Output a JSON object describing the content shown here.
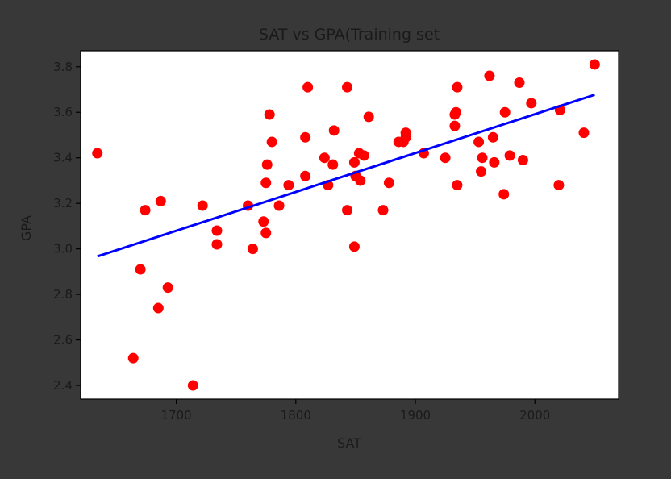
{
  "chart_data": {
    "type": "scatter",
    "title": "SAT vs GPA(Training set",
    "xlabel": "SAT",
    "ylabel": "GPA",
    "xlim": [
      1620,
      2070
    ],
    "ylim": [
      2.34,
      3.87
    ],
    "xticks": [
      1700,
      1800,
      1900,
      2000
    ],
    "xtick_labels": [
      "1700",
      "1800",
      "1900",
      "2000"
    ],
    "yticks": [
      2.4,
      2.6,
      2.8,
      3.0,
      3.2,
      3.4,
      3.6,
      3.8
    ],
    "ytick_labels": [
      "2.4",
      "2.6",
      "2.8",
      "3.0",
      "3.2",
      "3.4",
      "3.6",
      "3.8"
    ],
    "grid": false,
    "background_color": "#383838",
    "plot_background": "#ffffff",
    "scatter_color": "#ff0000",
    "line_color": "#0000ff",
    "points": [
      [
        1634,
        3.42
      ],
      [
        1664,
        2.52
      ],
      [
        1670,
        2.91
      ],
      [
        1674,
        3.17
      ],
      [
        1685,
        2.74
      ],
      [
        1687,
        3.21
      ],
      [
        1693,
        2.83
      ],
      [
        1714,
        2.4
      ],
      [
        1722,
        3.19
      ],
      [
        1734,
        3.08
      ],
      [
        1734,
        3.02
      ],
      [
        1760,
        3.19
      ],
      [
        1764,
        3.0
      ],
      [
        1773,
        3.12
      ],
      [
        1775,
        3.07
      ],
      [
        1775,
        3.29
      ],
      [
        1776,
        3.37
      ],
      [
        1778,
        3.59
      ],
      [
        1780,
        3.47
      ],
      [
        1786,
        3.19
      ],
      [
        1794,
        3.28
      ],
      [
        1808,
        3.49
      ],
      [
        1808,
        3.32
      ],
      [
        1810,
        3.71
      ],
      [
        1824,
        3.4
      ],
      [
        1827,
        3.28
      ],
      [
        1831,
        3.37
      ],
      [
        1832,
        3.52
      ],
      [
        1843,
        3.71
      ],
      [
        1843,
        3.17
      ],
      [
        1849,
        3.38
      ],
      [
        1849,
        3.01
      ],
      [
        1850,
        3.32
      ],
      [
        1853,
        3.42
      ],
      [
        1854,
        3.3
      ],
      [
        1857,
        3.41
      ],
      [
        1861,
        3.58
      ],
      [
        1873,
        3.17
      ],
      [
        1878,
        3.29
      ],
      [
        1886,
        3.47
      ],
      [
        1890,
        3.47
      ],
      [
        1892,
        3.49
      ],
      [
        1892,
        3.51
      ],
      [
        1907,
        3.42
      ],
      [
        1925,
        3.4
      ],
      [
        1933,
        3.59
      ],
      [
        1933,
        3.54
      ],
      [
        1934,
        3.6
      ],
      [
        1935,
        3.28
      ],
      [
        1935,
        3.71
      ],
      [
        1953,
        3.47
      ],
      [
        1955,
        3.34
      ],
      [
        1956,
        3.4
      ],
      [
        1962,
        3.76
      ],
      [
        1965,
        3.49
      ],
      [
        1966,
        3.38
      ],
      [
        1974,
        3.24
      ],
      [
        1975,
        3.6
      ],
      [
        1979,
        3.41
      ],
      [
        1987,
        3.73
      ],
      [
        1990,
        3.39
      ],
      [
        1997,
        3.64
      ],
      [
        2020,
        3.28
      ],
      [
        2021,
        3.61
      ],
      [
        2041,
        3.51
      ],
      [
        2050,
        3.81
      ]
    ],
    "regression_line": {
      "x": [
        1634,
        2050
      ],
      "y": [
        2.967,
        3.677
      ]
    }
  }
}
